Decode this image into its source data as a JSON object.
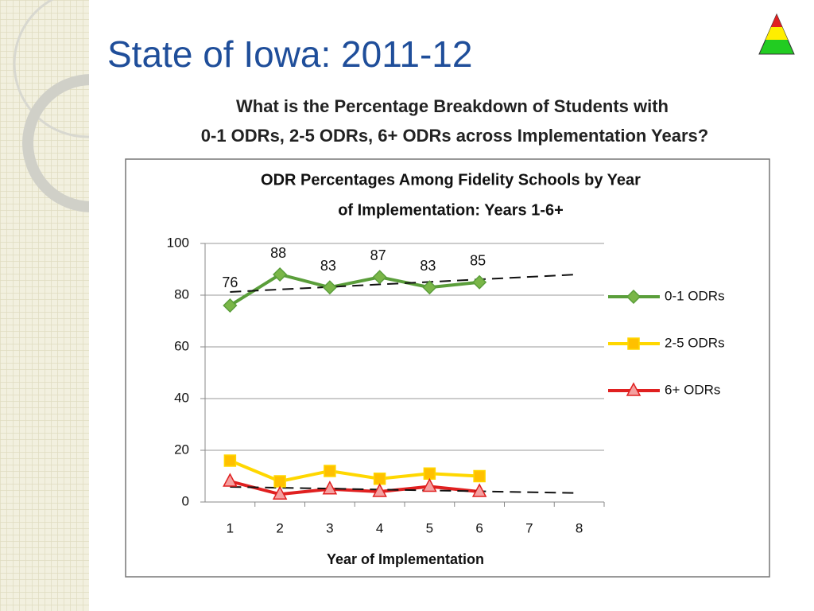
{
  "slide_title": "State of Iowa: 2011-12",
  "question": [
    "What is the Percentage Breakdown of Students with",
    "0-1 ODRs, 2-5 ODRs, 6+ ODRs across Implementation Years?"
  ],
  "chart_data": {
    "type": "line",
    "title": [
      "ODR Percentages Among Fidelity Schools by Year",
      "of Implementation: Years 1-6+"
    ],
    "x_label": "Year of Implementation",
    "categories": [
      "1",
      "2",
      "3",
      "4",
      "5",
      "6",
      "7",
      "8"
    ],
    "series": [
      {
        "name": "0-1 ODRs",
        "color": "#5a9e3a",
        "marker": "diamond",
        "trendline": true,
        "data_labels": true,
        "values": [
          76,
          88,
          83,
          87,
          83,
          85,
          null,
          null
        ]
      },
      {
        "name": "2-5 ODRs",
        "color": "#ffd700",
        "marker": "square",
        "trendline": false,
        "data_labels": false,
        "values": [
          16,
          8,
          12,
          9,
          11,
          10,
          null,
          null
        ]
      },
      {
        "name": "6+ ODRs",
        "color": "#e02020",
        "marker": "triangle",
        "trendline": true,
        "data_labels": false,
        "values": [
          8,
          3,
          5,
          4,
          6,
          4,
          null,
          null
        ]
      }
    ],
    "ylim": [
      0,
      100
    ],
    "yticks": [
      0,
      20,
      40,
      60,
      80,
      100
    ],
    "grid": true,
    "legend": "right"
  }
}
